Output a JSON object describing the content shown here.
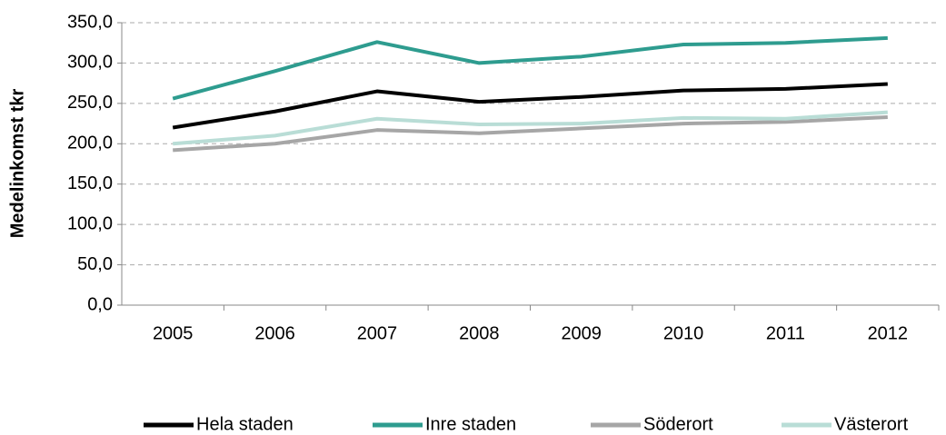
{
  "chart_data": {
    "type": "line",
    "y_label": "Medelinkomst tkr",
    "categories": [
      "2005",
      "2006",
      "2007",
      "2008",
      "2009",
      "2010",
      "2011",
      "2012"
    ],
    "series": [
      {
        "name": "Hela staden",
        "color": "#000000",
        "values": [
          220,
          240,
          265,
          252,
          258,
          266,
          268,
          274
        ]
      },
      {
        "name": "Inre staden",
        "color": "#2e9c8f",
        "values": [
          256,
          290,
          326,
          300,
          308,
          323,
          325,
          331
        ]
      },
      {
        "name": "Söderort",
        "color": "#a6a6a6",
        "values": [
          192,
          200,
          217,
          213,
          219,
          225,
          227,
          233
        ]
      },
      {
        "name": "Västerort",
        "color": "#b9ddd6",
        "values": [
          200,
          210,
          231,
          224,
          225,
          232,
          231,
          239
        ]
      }
    ],
    "ylim": [
      0,
      350
    ],
    "yticks": [
      {
        "value": 0,
        "label": "0,0"
      },
      {
        "value": 50,
        "label": "50,0"
      },
      {
        "value": 100,
        "label": "100,0"
      },
      {
        "value": 150,
        "label": "150,0"
      },
      {
        "value": 200,
        "label": "200,0"
      },
      {
        "value": 250,
        "label": "250,0"
      },
      {
        "value": 300,
        "label": "300,0"
      },
      {
        "value": 350,
        "label": "350,0"
      }
    ],
    "grid": true,
    "legend": "bottom"
  }
}
